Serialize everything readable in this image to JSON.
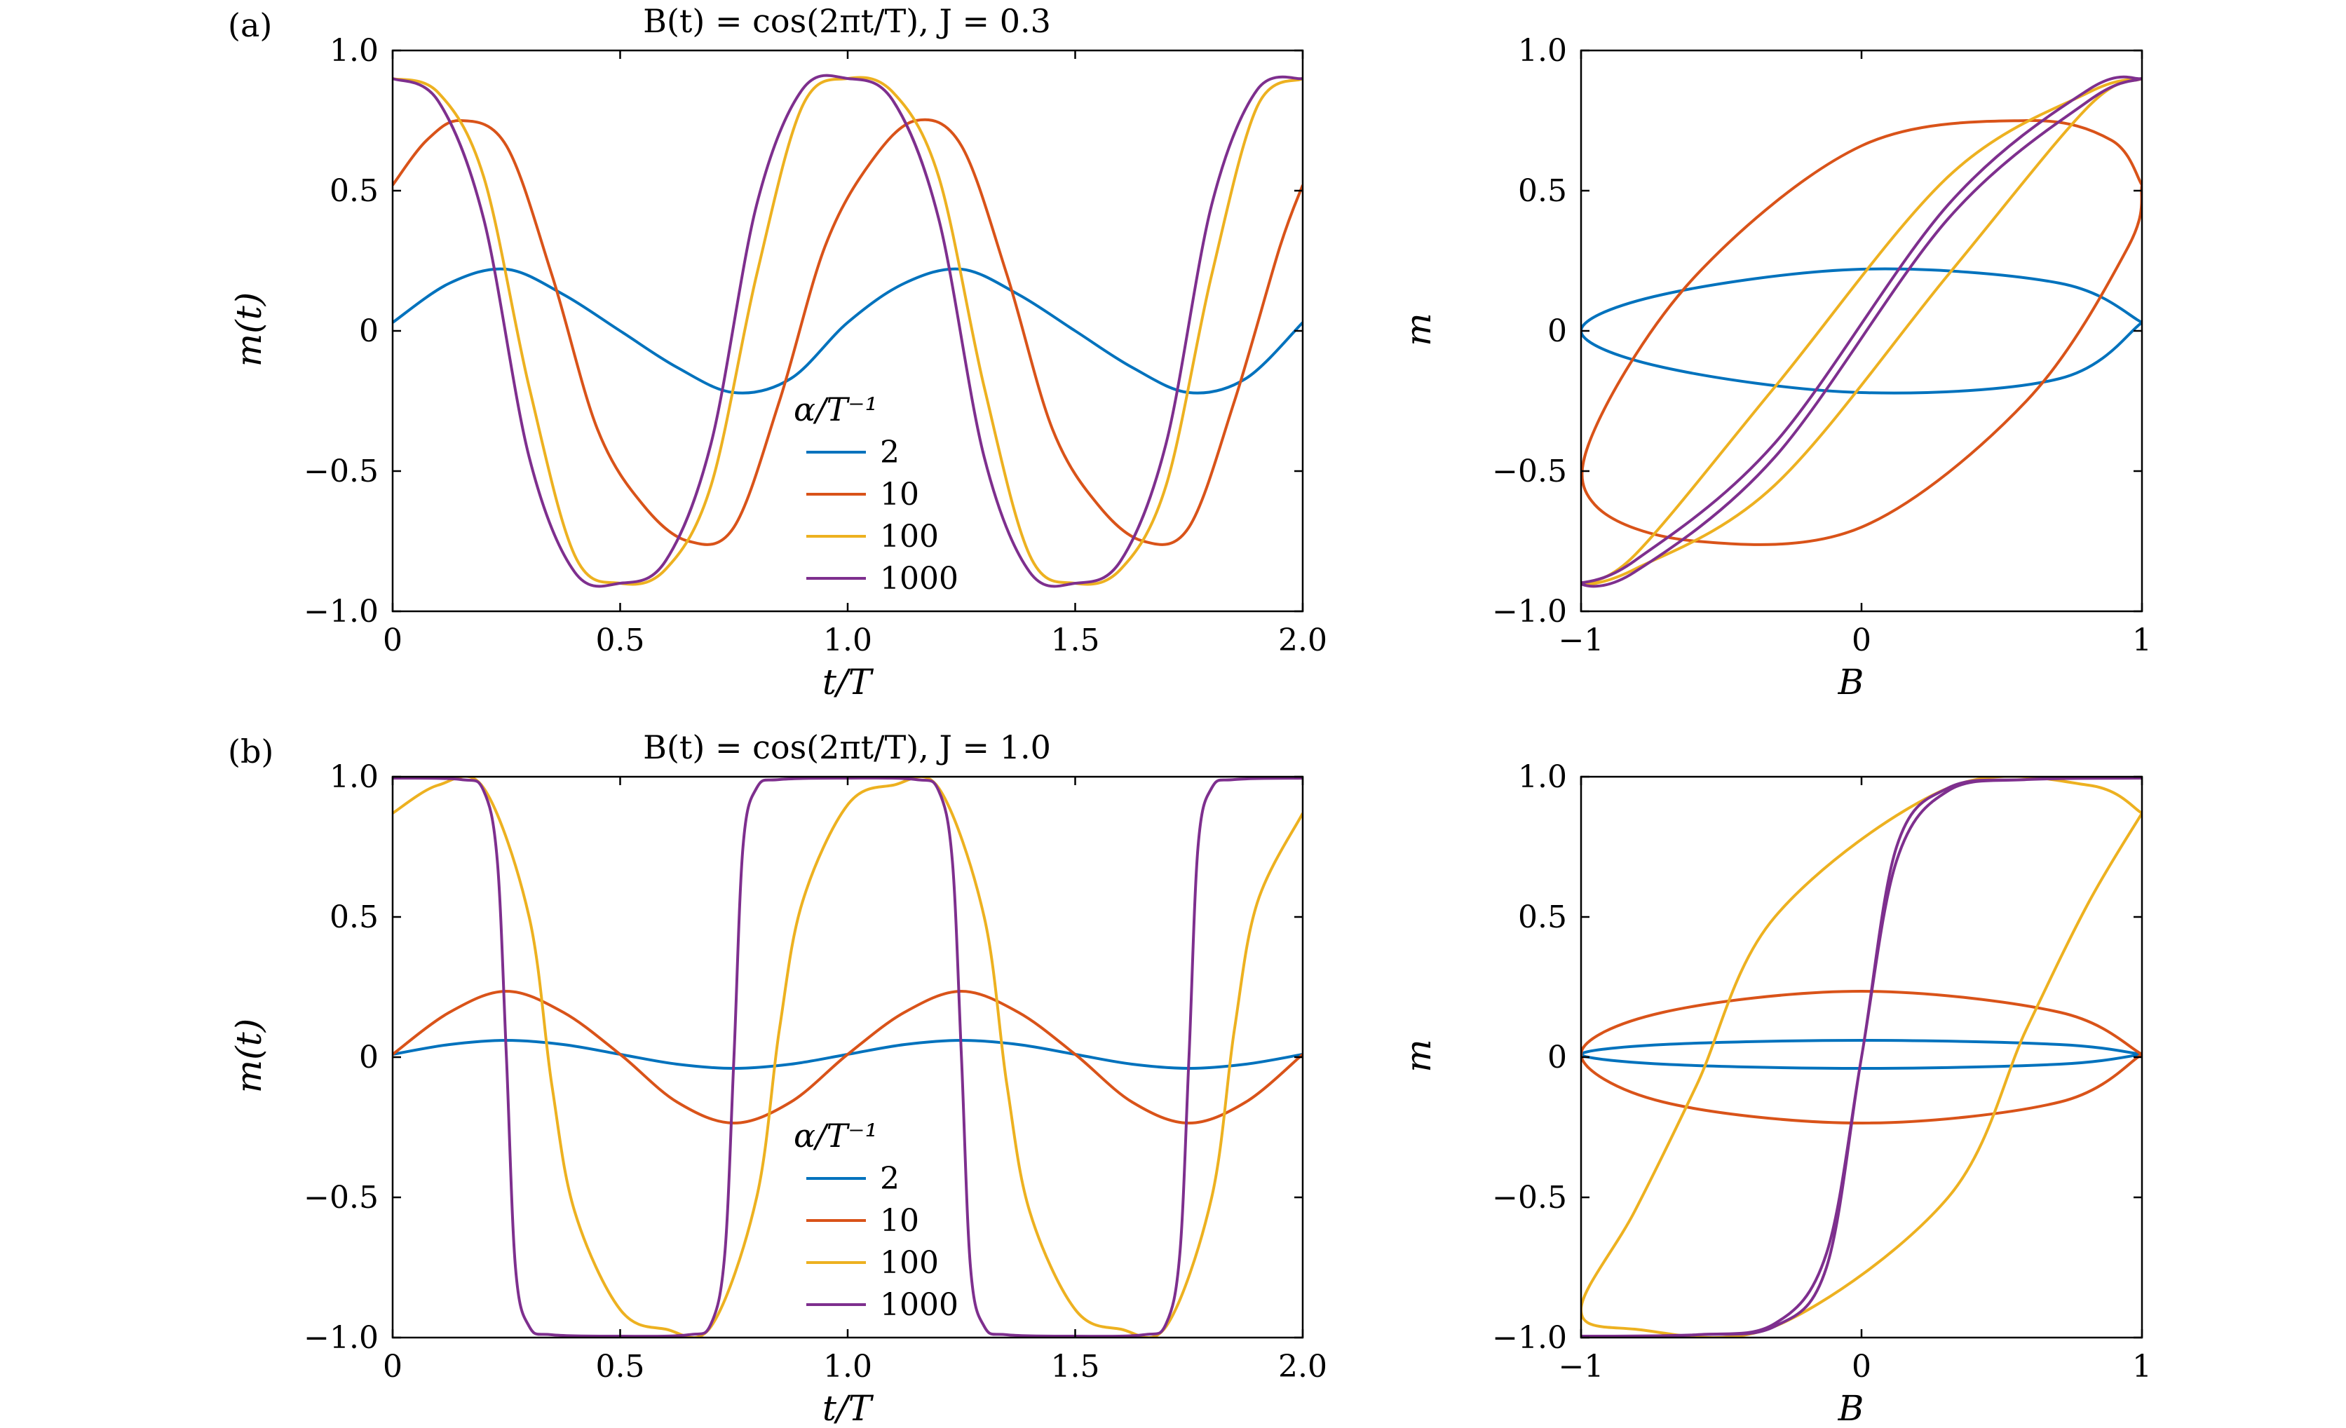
{
  "chart_data": [
    {
      "type": "line",
      "panel_label": "(a)",
      "title": "B(t) = cos(2πt/T),  J = 0.3",
      "xlabel": "t/T",
      "ylabel": "m(t)",
      "xlim": [
        0,
        2
      ],
      "ylim": [
        -1,
        1
      ],
      "xticks": [
        "0",
        "0.5",
        "1.0",
        "1.5",
        "2.0"
      ],
      "yticks": [
        "−1.0",
        "−0.5",
        "0",
        "0.5",
        "1.0"
      ],
      "legend_title": "α/T⁻¹",
      "legend_position": "lower-center",
      "grid": false,
      "series": [
        {
          "name": "2",
          "color": "#0072BD",
          "x": [
            0,
            0.125,
            0.25,
            0.375,
            0.5,
            0.625,
            0.75,
            0.875,
            1.0,
            1.125,
            1.25,
            1.375,
            1.5,
            1.625,
            1.75,
            1.875,
            2.0
          ],
          "y": [
            0.03,
            0.17,
            0.22,
            0.13,
            0.0,
            -0.13,
            -0.22,
            -0.17,
            0.03,
            0.17,
            0.22,
            0.13,
            0.0,
            -0.13,
            -0.22,
            -0.17,
            0.03
          ]
        },
        {
          "name": "10",
          "color": "#D95319",
          "x": [
            0,
            0.075,
            0.15,
            0.25,
            0.35,
            0.45,
            0.55,
            0.65,
            0.75,
            0.85,
            0.95,
            1.05,
            1.15,
            1.25,
            1.35,
            1.45,
            1.55,
            1.65,
            1.75,
            1.85,
            1.95,
            2.0
          ],
          "y": [
            0.52,
            0.68,
            0.75,
            0.66,
            0.2,
            -0.35,
            -0.62,
            -0.75,
            -0.7,
            -0.25,
            0.3,
            0.6,
            0.75,
            0.66,
            0.2,
            -0.35,
            -0.62,
            -0.75,
            -0.7,
            -0.25,
            0.3,
            0.52
          ]
        },
        {
          "name": "100",
          "color": "#EDB120",
          "x": [
            0,
            0.1,
            0.2,
            0.3,
            0.4,
            0.5,
            0.6,
            0.7,
            0.8,
            0.9,
            1.0,
            1.1,
            1.2,
            1.3,
            1.4,
            1.5,
            1.6,
            1.7,
            1.8,
            1.9,
            2.0
          ],
          "y": [
            0.9,
            0.85,
            0.55,
            -0.2,
            -0.8,
            -0.9,
            -0.85,
            -0.55,
            0.2,
            0.8,
            0.9,
            0.85,
            0.55,
            -0.2,
            -0.8,
            -0.9,
            -0.85,
            -0.55,
            0.2,
            0.8,
            0.9
          ]
        },
        {
          "name": "1000",
          "color": "#7E2F8E",
          "x": [
            0,
            0.1,
            0.2,
            0.3,
            0.4,
            0.5,
            0.6,
            0.7,
            0.8,
            0.9,
            1.0,
            1.1,
            1.2,
            1.3,
            1.4,
            1.5,
            1.6,
            1.7,
            1.8,
            1.9,
            2.0
          ],
          "y": [
            0.9,
            0.82,
            0.4,
            -0.45,
            -0.86,
            -0.9,
            -0.82,
            -0.4,
            0.45,
            0.86,
            0.9,
            0.82,
            0.4,
            -0.45,
            -0.86,
            -0.9,
            -0.82,
            -0.4,
            0.45,
            0.86,
            0.9
          ]
        }
      ]
    },
    {
      "type": "line",
      "xlabel": "B",
      "ylabel": "m",
      "xlim": [
        -1,
        1
      ],
      "ylim": [
        -1,
        1
      ],
      "xticks": [
        "−1",
        "0",
        "1"
      ],
      "yticks": [
        "−1.0",
        "−0.5",
        "0",
        "0.5",
        "1.0"
      ],
      "grid": false,
      "series": [
        {
          "color": "#0072BD",
          "x": [
            1.0,
            0.707,
            0.0,
            -0.707,
            -1.0,
            -0.707,
            0.0,
            0.707,
            1.0
          ],
          "y": [
            0.03,
            0.17,
            0.22,
            0.13,
            0.0,
            -0.13,
            -0.22,
            -0.17,
            0.03
          ]
        },
        {
          "color": "#D95319",
          "x": [
            1.0,
            0.891,
            0.588,
            0.0,
            -0.588,
            -0.951,
            -0.951,
            -0.588,
            0.0,
            0.588,
            0.951,
            1.0
          ],
          "y": [
            0.52,
            0.68,
            0.75,
            0.66,
            0.2,
            -0.35,
            -0.62,
            -0.75,
            -0.7,
            -0.25,
            0.3,
            0.52
          ]
        },
        {
          "color": "#EDB120",
          "x": [
            1.0,
            0.809,
            0.309,
            -0.309,
            -0.809,
            -1.0,
            -0.809,
            -0.309,
            0.309,
            0.809,
            1.0
          ],
          "y": [
            0.9,
            0.85,
            0.55,
            -0.2,
            -0.8,
            -0.9,
            -0.85,
            -0.55,
            0.2,
            0.8,
            0.9
          ]
        },
        {
          "color": "#7E2F8E",
          "x": [
            1.0,
            0.809,
            0.309,
            -0.309,
            -0.809,
            -1.0,
            -0.809,
            -0.309,
            0.309,
            0.809,
            1.0
          ],
          "y": [
            0.9,
            0.82,
            0.4,
            -0.45,
            -0.86,
            -0.9,
            -0.82,
            -0.4,
            0.45,
            0.86,
            0.9
          ]
        }
      ]
    },
    {
      "type": "line",
      "panel_label": "(b)",
      "title": "B(t) = cos(2πt/T),  J = 1.0",
      "xlabel": "t/T",
      "ylabel": "m(t)",
      "xlim": [
        0,
        2
      ],
      "ylim": [
        -1,
        1
      ],
      "xticks": [
        "0",
        "0.5",
        "1.0",
        "1.5",
        "2.0"
      ],
      "yticks": [
        "−1.0",
        "−0.5",
        "0",
        "0.5",
        "1.0"
      ],
      "legend_title": "α/T⁻¹",
      "legend_position": "lower-center",
      "grid": false,
      "series": [
        {
          "name": "2",
          "color": "#0072BD",
          "x": [
            0,
            0.125,
            0.25,
            0.375,
            0.5,
            0.625,
            0.75,
            0.875,
            1.0,
            1.125,
            1.25,
            1.375,
            1.5,
            1.625,
            1.75,
            1.875,
            2.0
          ],
          "y": [
            0.01,
            0.045,
            0.06,
            0.045,
            0.01,
            -0.025,
            -0.04,
            -0.025,
            0.01,
            0.045,
            0.06,
            0.045,
            0.01,
            -0.025,
            -0.04,
            -0.025,
            0.01
          ]
        },
        {
          "name": "10",
          "color": "#D95319",
          "x": [
            0,
            0.125,
            0.25,
            0.375,
            0.5,
            0.625,
            0.75,
            0.875,
            1.0,
            1.125,
            1.25,
            1.375,
            1.5,
            1.625,
            1.75,
            1.875,
            2.0
          ],
          "y": [
            0.01,
            0.16,
            0.235,
            0.16,
            0.01,
            -0.16,
            -0.235,
            -0.16,
            0.01,
            0.16,
            0.235,
            0.16,
            0.01,
            -0.16,
            -0.235,
            -0.16,
            0.01
          ]
        },
        {
          "name": "100",
          "color": "#EDB120",
          "x": [
            0,
            0.1,
            0.2,
            0.3,
            0.35,
            0.4,
            0.5,
            0.6,
            0.7,
            0.8,
            0.85,
            0.9,
            1.0,
            1.1,
            1.2,
            1.3,
            1.35,
            1.4,
            1.5,
            1.6,
            1.7,
            1.8,
            1.85,
            1.9,
            2.0
          ],
          "y": [
            0.87,
            0.97,
            0.96,
            0.5,
            -0.1,
            -0.55,
            -0.9,
            -0.97,
            -0.96,
            -0.5,
            0.1,
            0.55,
            0.9,
            0.97,
            0.96,
            0.5,
            -0.1,
            -0.55,
            -0.9,
            -0.97,
            -0.96,
            -0.5,
            0.1,
            0.55,
            0.87
          ]
        },
        {
          "name": "1000",
          "color": "#7E2F8E",
          "x": [
            0,
            0.15,
            0.2,
            0.23,
            0.25,
            0.27,
            0.3,
            0.35,
            0.5,
            0.65,
            0.7,
            0.73,
            0.75,
            0.77,
            0.8,
            0.85,
            1.0,
            1.15,
            1.2,
            1.23,
            1.25,
            1.27,
            1.3,
            1.35,
            1.5,
            1.65,
            1.7,
            1.73,
            1.75,
            1.77,
            1.8,
            1.85,
            2.0
          ],
          "y": [
            0.995,
            0.99,
            0.95,
            0.7,
            0.0,
            -0.75,
            -0.96,
            -0.99,
            -0.995,
            -0.99,
            -0.95,
            -0.7,
            0.0,
            0.75,
            0.96,
            0.99,
            0.995,
            0.99,
            0.95,
            0.7,
            0.0,
            -0.75,
            -0.96,
            -0.99,
            -0.995,
            -0.99,
            -0.95,
            -0.7,
            0.0,
            0.75,
            0.96,
            0.99,
            0.995
          ]
        }
      ]
    },
    {
      "type": "line",
      "xlabel": "B",
      "ylabel": "m",
      "xlim": [
        -1,
        1
      ],
      "ylim": [
        -1,
        1
      ],
      "xticks": [
        "−1",
        "0",
        "1"
      ],
      "yticks": [
        "−1.0",
        "−0.5",
        "0",
        "0.5",
        "1.0"
      ],
      "grid": false,
      "series": [
        {
          "color": "#0072BD",
          "x": [
            1.0,
            0.707,
            0.0,
            -0.707,
            -1.0,
            -0.707,
            0.0,
            0.707,
            1.0
          ],
          "y": [
            0.01,
            0.045,
            0.06,
            0.045,
            0.01,
            -0.025,
            -0.04,
            -0.025,
            0.01
          ]
        },
        {
          "color": "#D95319",
          "x": [
            1.0,
            0.707,
            0.0,
            -0.707,
            -1.0,
            -0.707,
            0.0,
            0.707,
            1.0
          ],
          "y": [
            0.01,
            0.16,
            0.235,
            0.16,
            0.01,
            -0.16,
            -0.235,
            -0.16,
            0.01
          ]
        },
        {
          "color": "#EDB120",
          "x": [
            1.0,
            0.809,
            0.309,
            -0.309,
            -0.588,
            -0.809,
            -1.0,
            -0.809,
            -0.309,
            0.309,
            0.588,
            0.809,
            1.0
          ],
          "y": [
            0.87,
            0.97,
            0.96,
            0.5,
            -0.1,
            -0.55,
            -0.9,
            -0.97,
            -0.96,
            -0.5,
            0.1,
            0.55,
            0.87
          ]
        },
        {
          "color": "#7E2F8E",
          "x": [
            1.0,
            0.588,
            0.309,
            0.125,
            0.0,
            -0.125,
            -0.309,
            -0.588,
            -1.0,
            -0.588,
            -0.309,
            -0.125,
            0.0,
            0.125,
            0.309,
            0.588,
            1.0
          ],
          "y": [
            0.995,
            0.99,
            0.95,
            0.7,
            0.0,
            -0.75,
            -0.96,
            -0.99,
            -0.995,
            -0.99,
            -0.95,
            -0.7,
            0.0,
            0.75,
            0.96,
            0.99,
            0.995
          ]
        }
      ]
    }
  ]
}
